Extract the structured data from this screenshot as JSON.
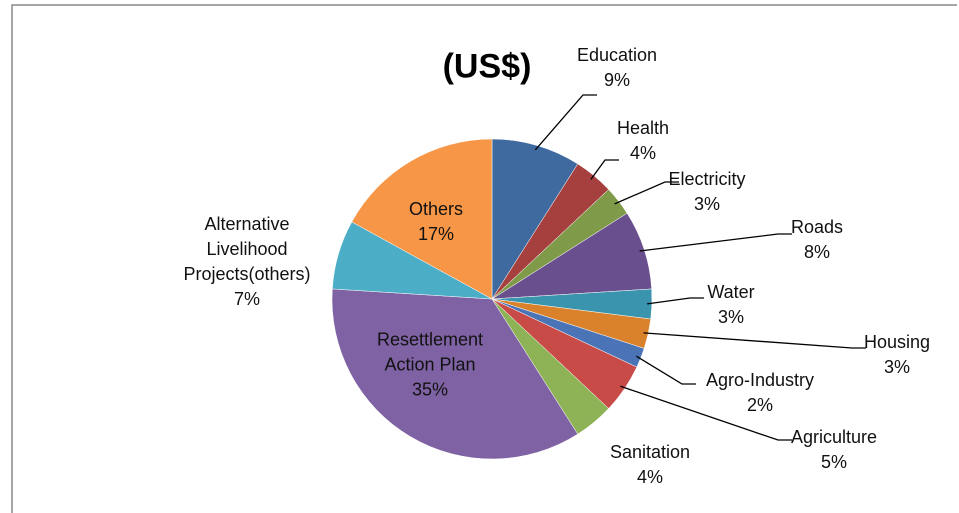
{
  "chart_data": {
    "type": "pie",
    "title": "(US$)",
    "categories": [
      "Education",
      "Health",
      "Electricity",
      "Roads",
      "Water",
      "Housing",
      "Agro-Industry",
      "Agriculture",
      "Sanitation",
      "Resettlement Action Plan",
      "Alternative Livelihood Projects(others)",
      "Others"
    ],
    "values": [
      9,
      4,
      3,
      8,
      3,
      3,
      2,
      5,
      4,
      35,
      7,
      17
    ],
    "value_labels": [
      "9%",
      "4%",
      "3%",
      "8%",
      "3%",
      "3%",
      "2%",
      "5%",
      "4%",
      "35%",
      "7%",
      "17%"
    ],
    "colors": [
      "#3e6aa0",
      "#a5403e",
      "#7f9a48",
      "#6a4f8e",
      "#3a94ad",
      "#d9822b",
      "#4a74b6",
      "#c94b48",
      "#8db356",
      "#7e62a3",
      "#4baec6",
      "#f79646"
    ]
  }
}
